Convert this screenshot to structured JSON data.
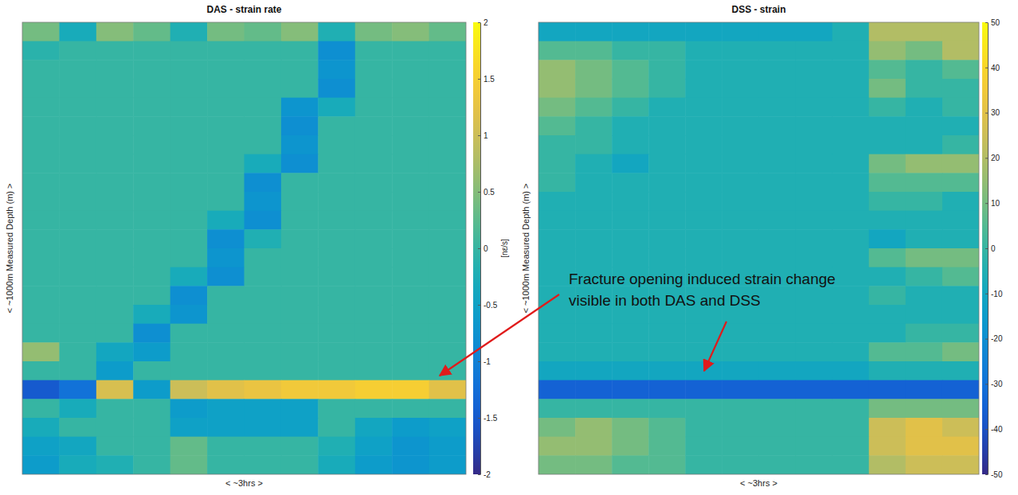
{
  "chart_data": [
    {
      "type": "heatmap",
      "title": "DAS - strain rate",
      "x_label": "< ~3hrs >",
      "y_label": "< ~1000m Measured Depth (m) >",
      "tick_labels": false,
      "cells": [
        [
          0.4,
          -0.3,
          0.5,
          0.3,
          -0.2,
          0.4,
          0.3,
          0.5,
          -0.2,
          0.4,
          0.5,
          0.3
        ],
        [
          -0.1,
          0,
          0,
          0,
          0,
          0,
          0,
          0,
          -0.8,
          0,
          0,
          0
        ],
        [
          0,
          0,
          0,
          0,
          0,
          0,
          0,
          0,
          -0.7,
          0,
          0,
          0
        ],
        [
          0,
          0,
          0,
          0,
          0,
          0,
          0,
          0,
          -0.8,
          0,
          0,
          0
        ],
        [
          0,
          0,
          0,
          0,
          0,
          0,
          0,
          -0.7,
          -0.3,
          0,
          0,
          0
        ],
        [
          0,
          0,
          0,
          0,
          0,
          0,
          0,
          -0.8,
          0,
          0,
          0,
          0
        ],
        [
          0,
          0,
          0,
          0,
          0,
          0,
          0,
          -0.7,
          0,
          0,
          0,
          0
        ],
        [
          0,
          0,
          0,
          0,
          0,
          0,
          -0.3,
          -0.8,
          0,
          0,
          0,
          0
        ],
        [
          0,
          0,
          0,
          0,
          0,
          0,
          -0.8,
          0,
          0,
          0,
          0,
          0
        ],
        [
          0,
          0,
          0,
          0,
          0,
          0,
          -0.7,
          0,
          0,
          0,
          0,
          0
        ],
        [
          0,
          0,
          0,
          0,
          0,
          -0.3,
          -0.8,
          0,
          0,
          0,
          0,
          0
        ],
        [
          0,
          0,
          0,
          0,
          0,
          -0.8,
          -0.2,
          0,
          0,
          0,
          0,
          0
        ],
        [
          0,
          0,
          0,
          0,
          0,
          -0.7,
          0,
          0,
          0,
          0,
          0,
          0
        ],
        [
          0,
          0,
          0,
          0,
          -0.3,
          -0.8,
          0,
          0,
          0,
          0,
          0,
          0
        ],
        [
          0,
          0,
          0,
          0,
          -0.8,
          0,
          0,
          0,
          0,
          0,
          0,
          0
        ],
        [
          0,
          0,
          0,
          -0.3,
          -0.7,
          0,
          0,
          0,
          0,
          0,
          0,
          0
        ],
        [
          0,
          0,
          0,
          -0.8,
          0,
          0,
          0,
          0,
          0,
          0,
          0,
          0
        ],
        [
          0.6,
          0,
          -0.4,
          -0.6,
          0,
          0,
          0,
          0,
          0,
          0,
          0,
          0
        ],
        [
          0,
          0,
          -0.6,
          0,
          0,
          0,
          0,
          0,
          0,
          0,
          0,
          0
        ],
        [
          -1.5,
          -1.2,
          1.1,
          -0.6,
          1.0,
          1.2,
          1.3,
          1.4,
          1.4,
          1.5,
          1.5,
          1.2
        ],
        [
          0,
          -0.3,
          0,
          0,
          -0.6,
          -0.5,
          -0.5,
          -0.5,
          0,
          0,
          0,
          0
        ],
        [
          -0.3,
          0,
          0,
          0,
          -0.5,
          -0.5,
          -0.5,
          -0.5,
          0,
          -0.4,
          -0.6,
          -0.5
        ],
        [
          -0.5,
          -0.4,
          0,
          0,
          0.3,
          0,
          0,
          0,
          -0.2,
          -0.5,
          -0.7,
          -0.6
        ],
        [
          -0.6,
          -0.3,
          -0.2,
          0,
          0.3,
          0,
          0,
          0,
          -0.3,
          -0.6,
          -0.7,
          -0.6
        ]
      ],
      "color_range": [
        -2,
        2
      ],
      "color_ticks": [
        -2,
        -1.5,
        -1,
        -0.5,
        0,
        0.5,
        1,
        1.5,
        2
      ],
      "color_label": "[nε/s]"
    },
    {
      "type": "heatmap",
      "title": "DSS - strain",
      "x_label": "< ~3hrs >",
      "y_label": "< ~1000m Measured Depth (m) >",
      "tick_labels": false,
      "cells": [
        [
          -10,
          -10,
          -10,
          -10,
          -10,
          -10,
          -10,
          -10,
          -5,
          20,
          20,
          20
        ],
        [
          5,
          5,
          0,
          0,
          -5,
          -5,
          -5,
          -5,
          -5,
          15,
          10,
          20
        ],
        [
          15,
          10,
          5,
          0,
          -5,
          -5,
          -5,
          -5,
          -5,
          5,
          0,
          5
        ],
        [
          15,
          10,
          5,
          0,
          -5,
          -5,
          -5,
          -5,
          -5,
          10,
          0,
          0
        ],
        [
          10,
          5,
          0,
          -5,
          -5,
          -5,
          -5,
          -5,
          -5,
          0,
          -5,
          0
        ],
        [
          5,
          0,
          -5,
          -5,
          -5,
          -5,
          -5,
          -5,
          -5,
          -5,
          -5,
          -5
        ],
        [
          0,
          0,
          -5,
          -5,
          -5,
          -5,
          -5,
          -5,
          -5,
          -5,
          -5,
          0
        ],
        [
          0,
          -5,
          -10,
          -5,
          -5,
          -5,
          -5,
          -5,
          -5,
          10,
          15,
          15
        ],
        [
          0,
          -5,
          -5,
          -5,
          -5,
          -5,
          -5,
          -5,
          -5,
          5,
          5,
          5
        ],
        [
          -5,
          -5,
          -5,
          -5,
          -5,
          -5,
          -5,
          -5,
          -5,
          0,
          0,
          -5
        ],
        [
          -5,
          -5,
          -5,
          -5,
          -5,
          -5,
          -5,
          -5,
          -5,
          -5,
          -5,
          -5
        ],
        [
          -5,
          -5,
          -5,
          -5,
          -5,
          -5,
          -5,
          -5,
          -5,
          -10,
          -5,
          -5
        ],
        [
          -5,
          -5,
          -5,
          -5,
          -5,
          -5,
          -5,
          -5,
          -5,
          5,
          10,
          10
        ],
        [
          -5,
          -5,
          -5,
          -5,
          -5,
          -5,
          -5,
          -5,
          -5,
          -5,
          0,
          5
        ],
        [
          -5,
          -5,
          -5,
          -5,
          -5,
          -5,
          -5,
          -5,
          -5,
          0,
          -5,
          -5
        ],
        [
          -5,
          -5,
          -5,
          -5,
          -5,
          -5,
          -5,
          -5,
          -5,
          -5,
          -5,
          -5
        ],
        [
          -5,
          -5,
          -5,
          -5,
          -5,
          -5,
          -5,
          -5,
          -5,
          -5,
          0,
          0
        ],
        [
          -5,
          -5,
          -5,
          -5,
          -5,
          -5,
          -5,
          -5,
          -5,
          5,
          5,
          10
        ],
        [
          -10,
          -10,
          -10,
          -10,
          -10,
          -10,
          -10,
          -10,
          -10,
          -5,
          -5,
          -5
        ],
        [
          -35,
          -35,
          -35,
          -35,
          -35,
          -35,
          -35,
          -35,
          -35,
          -35,
          -35,
          -35
        ],
        [
          0,
          0,
          0,
          0,
          0,
          0,
          0,
          0,
          0,
          10,
          10,
          10
        ],
        [
          10,
          15,
          10,
          5,
          0,
          0,
          0,
          0,
          0,
          25,
          30,
          25
        ],
        [
          15,
          15,
          10,
          5,
          0,
          0,
          0,
          0,
          0,
          25,
          30,
          30
        ],
        [
          10,
          10,
          5,
          5,
          0,
          0,
          0,
          0,
          0,
          20,
          25,
          25
        ]
      ],
      "color_range": [
        -50,
        50
      ],
      "color_ticks": [
        -50,
        -40,
        -30,
        -20,
        -10,
        0,
        10,
        20,
        30,
        40,
        50
      ],
      "annotation": "Fracture opening induced strain change visible in both DAS and DSS"
    }
  ]
}
